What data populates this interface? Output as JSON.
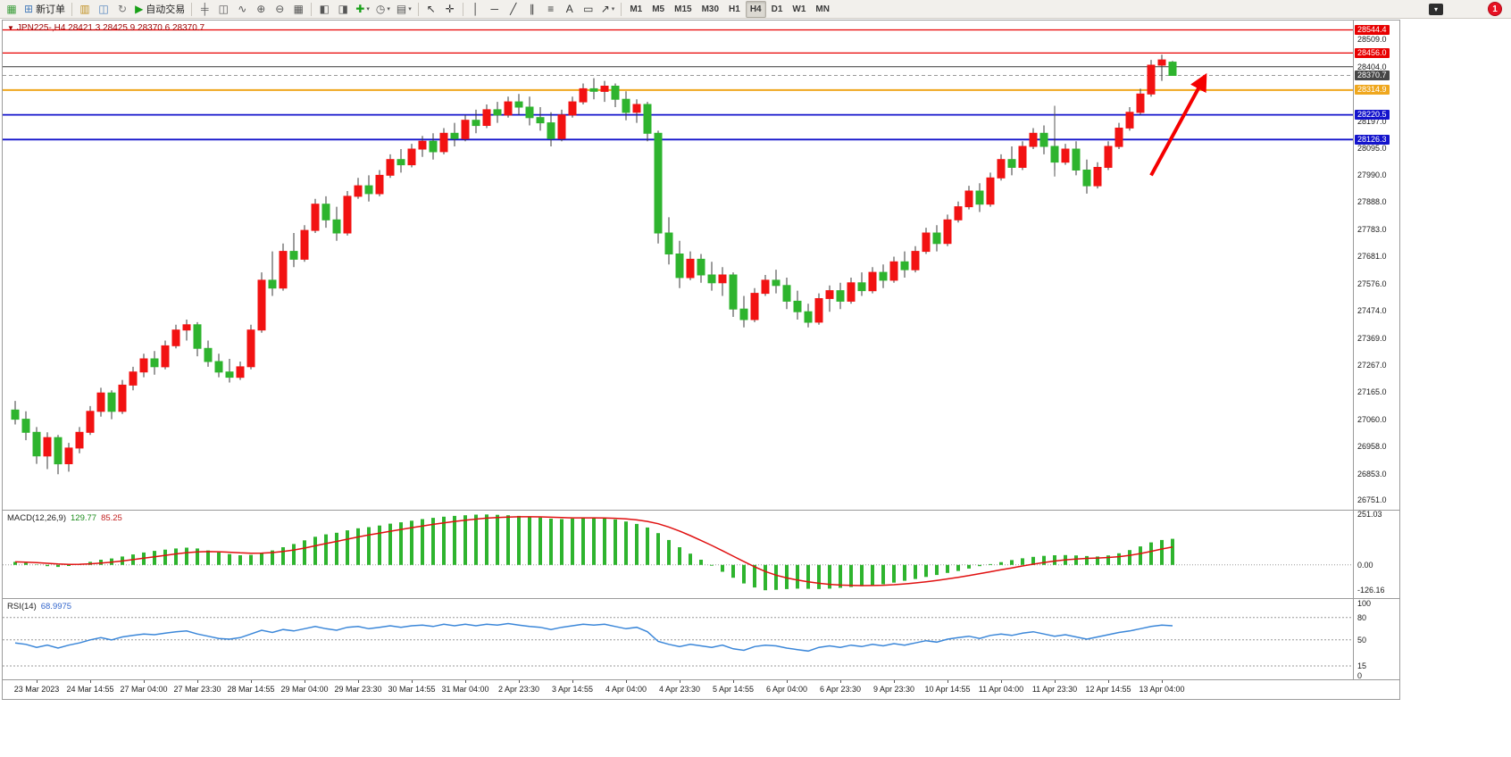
{
  "toolbar": {
    "overflow_glyph": "▾",
    "notification_count": "1",
    "items": [
      {
        "type": "icon",
        "name": "new-chart-icon",
        "glyph": "▦",
        "color": "#3c9e3c"
      },
      {
        "type": "labeled",
        "name": "new-order-button",
        "glyph": "⊞",
        "color": "#4a7ebb",
        "label": "新订单"
      },
      {
        "type": "sep"
      },
      {
        "type": "icon",
        "name": "profiles-icon",
        "glyph": "▥",
        "color": "#c09020"
      },
      {
        "type": "icon",
        "name": "market-watch-icon",
        "glyph": "◫",
        "color": "#4a7ebb"
      },
      {
        "type": "icon",
        "name": "refresh-icon",
        "glyph": "↻",
        "color": "#767676"
      },
      {
        "type": "labeled",
        "name": "autotrading-button",
        "glyph": "▶",
        "color": "#18a018",
        "label": "自动交易"
      },
      {
        "type": "sep"
      },
      {
        "type": "icon",
        "name": "bar-chart-icon",
        "glyph": "╪",
        "color": "#565656"
      },
      {
        "type": "icon",
        "name": "candlestick-chart-icon",
        "glyph": "◫",
        "color": "#565656"
      },
      {
        "type": "icon",
        "name": "line-chart-icon",
        "glyph": "∿",
        "color": "#565656"
      },
      {
        "type": "icon",
        "name": "zoom-in-icon",
        "glyph": "⊕",
        "color": "#565656"
      },
      {
        "type": "icon",
        "name": "zoom-out-icon",
        "glyph": "⊖",
        "color": "#565656"
      },
      {
        "type": "icon",
        "name": "tile-windows-icon",
        "glyph": "▦",
        "color": "#565656"
      },
      {
        "type": "sep"
      },
      {
        "type": "icon",
        "name": "chart-shift-icon",
        "glyph": "◧",
        "color": "#565656"
      },
      {
        "type": "icon",
        "name": "auto-scroll-icon",
        "glyph": "◨",
        "color": "#565656"
      },
      {
        "type": "dropdown",
        "name": "indicators-button",
        "glyph": "✚",
        "color": "#18a018"
      },
      {
        "type": "dropdown",
        "name": "periods-button",
        "glyph": "◷",
        "color": "#565656"
      },
      {
        "type": "dropdown",
        "name": "templates-button",
        "glyph": "▤",
        "color": "#565656"
      },
      {
        "type": "sep"
      },
      {
        "type": "icon",
        "name": "cursor-icon",
        "glyph": "↖",
        "color": "#333333"
      },
      {
        "type": "icon",
        "name": "crosshair-icon",
        "glyph": "✛",
        "color": "#333333"
      },
      {
        "type": "sep"
      },
      {
        "type": "icon",
        "name": "vertical-line-icon",
        "glyph": "│",
        "color": "#333333"
      },
      {
        "type": "icon",
        "name": "horizontal-line-icon",
        "glyph": "─",
        "color": "#333333"
      },
      {
        "type": "icon",
        "name": "trendline-icon",
        "glyph": "╱",
        "color": "#333333"
      },
      {
        "type": "icon",
        "name": "channel-icon",
        "glyph": "∥",
        "color": "#333333"
      },
      {
        "type": "icon",
        "name": "fibonacci-icon",
        "glyph": "≡",
        "color": "#333333"
      },
      {
        "type": "icon",
        "name": "text-icon",
        "glyph": "A",
        "color": "#333333"
      },
      {
        "type": "icon",
        "name": "text-label-icon",
        "glyph": "▭",
        "color": "#333333"
      },
      {
        "type": "dropdown",
        "name": "arrows-tool-button",
        "glyph": "↗",
        "color": "#333333"
      },
      {
        "type": "sep"
      },
      {
        "type": "tf",
        "name": "timeframe-m1-button",
        "label": "M1"
      },
      {
        "type": "tf",
        "name": "timeframe-m5-button",
        "label": "M5"
      },
      {
        "type": "tf",
        "name": "timeframe-m15-button",
        "label": "M15"
      },
      {
        "type": "tf",
        "name": "timeframe-m30-button",
        "label": "M30"
      },
      {
        "type": "tf",
        "name": "timeframe-h1-button",
        "label": "H1"
      },
      {
        "type": "tf",
        "name": "timeframe-h4-button",
        "label": "H4",
        "active": true
      },
      {
        "type": "tf",
        "name": "timeframe-d1-button",
        "label": "D1"
      },
      {
        "type": "tf",
        "name": "timeframe-w1-button",
        "label": "W1"
      },
      {
        "type": "tf",
        "name": "timeframe-mn-button",
        "label": "MN"
      }
    ]
  },
  "chart_data": {
    "type": "candlestick",
    "symbol": "JPN225-",
    "timeframe": "H4",
    "quote_header": {
      "marker": "▼",
      "symbol_period": "JPN225-,H4",
      "ohlc": "28421.3 28425.9 28370.6 28370.7"
    },
    "main_ylim": [
      26715,
      28580
    ],
    "colors": {
      "up": "#f21212",
      "down": "#2eb42e",
      "wick": "#3a3a3a"
    },
    "candles": [
      [
        27095,
        27130,
        27040,
        27060
      ],
      [
        27060,
        27090,
        26980,
        27010
      ],
      [
        27010,
        27030,
        26890,
        26920
      ],
      [
        26920,
        27010,
        26870,
        26990
      ],
      [
        26990,
        27000,
        26850,
        26890
      ],
      [
        26890,
        26970,
        26860,
        26950
      ],
      [
        26950,
        27030,
        26930,
        27010
      ],
      [
        27010,
        27110,
        27000,
        27090
      ],
      [
        27090,
        27180,
        27070,
        27160
      ],
      [
        27160,
        27170,
        27060,
        27090
      ],
      [
        27090,
        27210,
        27080,
        27190
      ],
      [
        27190,
        27260,
        27170,
        27240
      ],
      [
        27240,
        27310,
        27220,
        27290
      ],
      [
        27290,
        27320,
        27230,
        27260
      ],
      [
        27260,
        27360,
        27250,
        27340
      ],
      [
        27340,
        27420,
        27330,
        27400
      ],
      [
        27400,
        27440,
        27360,
        27420
      ],
      [
        27420,
        27430,
        27300,
        27330
      ],
      [
        27330,
        27360,
        27260,
        27280
      ],
      [
        27280,
        27310,
        27220,
        27240
      ],
      [
        27240,
        27290,
        27200,
        27220
      ],
      [
        27220,
        27280,
        27210,
        27260
      ],
      [
        27260,
        27420,
        27250,
        27400
      ],
      [
        27400,
        27620,
        27390,
        27590
      ],
      [
        27590,
        27700,
        27530,
        27560
      ],
      [
        27560,
        27730,
        27550,
        27700
      ],
      [
        27700,
        27770,
        27640,
        27670
      ],
      [
        27670,
        27800,
        27660,
        27780
      ],
      [
        27780,
        27900,
        27770,
        27880
      ],
      [
        27880,
        27910,
        27790,
        27820
      ],
      [
        27820,
        27870,
        27740,
        27770
      ],
      [
        27770,
        27930,
        27760,
        27910
      ],
      [
        27910,
        27980,
        27900,
        27950
      ],
      [
        27950,
        27990,
        27890,
        27920
      ],
      [
        27920,
        28010,
        27910,
        27990
      ],
      [
        27990,
        28070,
        27980,
        28050
      ],
      [
        28050,
        28090,
        28000,
        28030
      ],
      [
        28030,
        28110,
        28020,
        28090
      ],
      [
        28090,
        28140,
        28060,
        28120
      ],
      [
        28120,
        28150,
        28050,
        28080
      ],
      [
        28080,
        28170,
        28070,
        28150
      ],
      [
        28150,
        28190,
        28100,
        28130
      ],
      [
        28130,
        28220,
        28120,
        28200
      ],
      [
        28200,
        28240,
        28150,
        28180
      ],
      [
        28180,
        28260,
        28170,
        28240
      ],
      [
        28240,
        28270,
        28190,
        28220
      ],
      [
        28220,
        28290,
        28210,
        28270
      ],
      [
        28270,
        28300,
        28220,
        28250
      ],
      [
        28250,
        28290,
        28180,
        28210
      ],
      [
        28210,
        28250,
        28160,
        28190
      ],
      [
        28190,
        28230,
        28100,
        28130
      ],
      [
        28130,
        28240,
        28120,
        28220
      ],
      [
        28220,
        28290,
        28210,
        28270
      ],
      [
        28270,
        28340,
        28260,
        28320
      ],
      [
        28320,
        28360,
        28280,
        28310
      ],
      [
        28310,
        28350,
        28270,
        28330
      ],
      [
        28330,
        28340,
        28250,
        28280
      ],
      [
        28280,
        28310,
        28200,
        28230
      ],
      [
        28230,
        28280,
        28190,
        28260
      ],
      [
        28260,
        28270,
        28120,
        28150
      ],
      [
        28150,
        28160,
        27730,
        27770
      ],
      [
        27770,
        27830,
        27650,
        27690
      ],
      [
        27690,
        27740,
        27560,
        27600
      ],
      [
        27600,
        27700,
        27590,
        27670
      ],
      [
        27670,
        27690,
        27580,
        27610
      ],
      [
        27610,
        27660,
        27550,
        27580
      ],
      [
        27580,
        27640,
        27530,
        27610
      ],
      [
        27610,
        27620,
        27450,
        27480
      ],
      [
        27480,
        27530,
        27410,
        27440
      ],
      [
        27440,
        27560,
        27430,
        27540
      ],
      [
        27540,
        27610,
        27530,
        27590
      ],
      [
        27590,
        27630,
        27540,
        27570
      ],
      [
        27570,
        27600,
        27480,
        27510
      ],
      [
        27510,
        27550,
        27440,
        27470
      ],
      [
        27470,
        27500,
        27410,
        27430
      ],
      [
        27430,
        27540,
        27420,
        27520
      ],
      [
        27520,
        27570,
        27470,
        27550
      ],
      [
        27550,
        27580,
        27480,
        27510
      ],
      [
        27510,
        27600,
        27500,
        27580
      ],
      [
        27580,
        27620,
        27530,
        27550
      ],
      [
        27550,
        27640,
        27540,
        27620
      ],
      [
        27620,
        27650,
        27560,
        27590
      ],
      [
        27590,
        27680,
        27580,
        27660
      ],
      [
        27660,
        27700,
        27600,
        27630
      ],
      [
        27630,
        27720,
        27620,
        27700
      ],
      [
        27700,
        27790,
        27690,
        27770
      ],
      [
        27770,
        27800,
        27700,
        27730
      ],
      [
        27730,
        27840,
        27720,
        27820
      ],
      [
        27820,
        27890,
        27810,
        27870
      ],
      [
        27870,
        27950,
        27860,
        27930
      ],
      [
        27930,
        27960,
        27850,
        27880
      ],
      [
        27880,
        28000,
        27870,
        27980
      ],
      [
        27980,
        28070,
        27970,
        28050
      ],
      [
        28050,
        28100,
        27990,
        28020
      ],
      [
        28020,
        28120,
        28010,
        28100
      ],
      [
        28100,
        28170,
        28090,
        28150
      ],
      [
        28150,
        28180,
        28070,
        28100
      ],
      [
        28100,
        28130,
        28010,
        28040
      ],
      [
        28040,
        28110,
        28030,
        28090
      ],
      [
        28090,
        28120,
        27990,
        28010
      ],
      [
        28010,
        28050,
        27920,
        27950
      ],
      [
        27950,
        28040,
        27940,
        28020
      ],
      [
        28020,
        28120,
        28010,
        28100
      ],
      [
        28100,
        28190,
        28090,
        28170
      ],
      [
        28170,
        28250,
        28160,
        28230
      ],
      [
        28230,
        28320,
        28220,
        28300
      ],
      [
        28300,
        28430,
        28290,
        28410
      ],
      [
        28410,
        28450,
        28350,
        28430
      ],
      [
        28421.3,
        28425.9,
        28370.6,
        28370.7
      ]
    ],
    "hlines": [
      {
        "price": 28544.4,
        "color": "#e80000",
        "width": 1.2
      },
      {
        "price": 28456.0,
        "color": "#e80000",
        "width": 1.2
      },
      {
        "price": 28404.0,
        "color": "#333333",
        "width": 1
      },
      {
        "price": 28314.9,
        "color": "#efa71e",
        "width": 2
      },
      {
        "price": 28220.5,
        "color": "#1414cc",
        "width": 1.8
      },
      {
        "price": 28126.3,
        "color": "#1414cc",
        "width": 1.8
      },
      {
        "price": 28370.7,
        "color": "#999999",
        "width": 1,
        "dash": "4,3"
      }
    ],
    "vline": {
      "index": 97,
      "from": 28255,
      "to": 27985,
      "color": "#555555"
    },
    "arrow": {
      "from_index": 106,
      "from_price": 27990,
      "to_index": 110.8,
      "to_price": 28350,
      "color": "#f50000"
    },
    "price_axis": {
      "plain": [
        "28509.0",
        "28404.0",
        "28197.0",
        "28095.0",
        "27990.0",
        "27888.0",
        "27783.0",
        "27681.0",
        "27576.0",
        "27474.0",
        "27369.0",
        "27267.0",
        "27165.0",
        "27060.0",
        "26958.0",
        "26853.0",
        "26751.0"
      ],
      "tags": [
        {
          "text": "28544.4",
          "price": 28544.4,
          "bg": "#e80000"
        },
        {
          "text": "28456.0",
          "price": 28456.0,
          "bg": "#e80000"
        },
        {
          "text": "28370.7",
          "price": 28370.7,
          "bg": "#464646"
        },
        {
          "text": "28314.9",
          "price": 28314.9,
          "bg": "#efa71e"
        },
        {
          "text": "28220.5",
          "price": 28220.5,
          "bg": "#1414cc"
        },
        {
          "text": "28126.3",
          "price": 28126.3,
          "bg": "#1414cc"
        }
      ]
    },
    "macd": {
      "name": "MACD(12,26,9)",
      "main_value": "129.77",
      "signal_value": "85.25",
      "ylim": [
        -165,
        270
      ],
      "axis_labels": [
        "251.03",
        "0.00",
        "-126.16"
      ],
      "hist_color": "#2eb42e",
      "signal_color": "#e01010",
      "values": [
        15,
        10,
        2,
        -6,
        -10,
        -5,
        5,
        15,
        26,
        32,
        42,
        52,
        62,
        70,
        76,
        82,
        86,
        82,
        72,
        62,
        54,
        48,
        50,
        60,
        72,
        88,
        104,
        122,
        140,
        152,
        160,
        172,
        182,
        188,
        196,
        205,
        212,
        220,
        228,
        234,
        240,
        244,
        247,
        250,
        251,
        249,
        247,
        244,
        240,
        236,
        230,
        228,
        230,
        233,
        234,
        232,
        226,
        216,
        204,
        186,
        158,
        124,
        88,
        56,
        26,
        -4,
        -34,
        -64,
        -92,
        -112,
        -126.16,
        -124,
        -120,
        -118,
        -119,
        -120,
        -118,
        -114,
        -110,
        -106,
        -101,
        -96,
        -88,
        -79,
        -70,
        -60,
        -50,
        -40,
        -30,
        -18,
        -6,
        4,
        14,
        24,
        33,
        40,
        45,
        48,
        49,
        47,
        44,
        42,
        47,
        58,
        74,
        92,
        112,
        124,
        129.77
      ]
    },
    "rsi": {
      "name": "RSI(14)",
      "value": "68.9975",
      "ylim": [
        -3,
        105
      ],
      "levels": [
        80,
        50,
        15
      ],
      "axis_labels": [
        "100",
        "80",
        "50",
        "15",
        "0"
      ],
      "line_color": "#3b87d9",
      "values": [
        46,
        44,
        40,
        43,
        39,
        43,
        46,
        50,
        53,
        50,
        54,
        56,
        58,
        57,
        59,
        61,
        62,
        58,
        55,
        52,
        51,
        53,
        58,
        63,
        60,
        64,
        62,
        65,
        68,
        65,
        63,
        67,
        68,
        65,
        67,
        69,
        67,
        69,
        70,
        68,
        71,
        69,
        71,
        69,
        71,
        70,
        72,
        70,
        68,
        67,
        64,
        67,
        69,
        71,
        70,
        71,
        68,
        65,
        67,
        61,
        48,
        44,
        41,
        44,
        42,
        40,
        43,
        38,
        36,
        41,
        43,
        42,
        39,
        37,
        35,
        40,
        42,
        40,
        43,
        41,
        44,
        42,
        45,
        43,
        46,
        49,
        47,
        51,
        53,
        55,
        52,
        56,
        58,
        56,
        59,
        61,
        58,
        55,
        57,
        54,
        51,
        54,
        57,
        60,
        62,
        65,
        68,
        70,
        68.9975
      ]
    },
    "time_labels": [
      "23 Mar 2023",
      "24 Mar 14:55",
      "27 Mar 04:00",
      "27 Mar 23:30",
      "28 Mar 14:55",
      "29 Mar 04:00",
      "29 Mar 23:30",
      "30 Mar 14:55",
      "31 Mar 04:00",
      "2 Apr 23:30",
      "3 Apr 14:55",
      "4 Apr 04:00",
      "4 Apr 23:30",
      "5 Apr 14:55",
      "6 Apr 04:00",
      "6 Apr 23:30",
      "9 Apr 23:30",
      "10 Apr 14:55",
      "11 Apr 04:00",
      "11 Apr 23:30",
      "12 Apr 14:55",
      "13 Apr 04:00"
    ],
    "label_start_index": 2,
    "label_every": 5
  }
}
